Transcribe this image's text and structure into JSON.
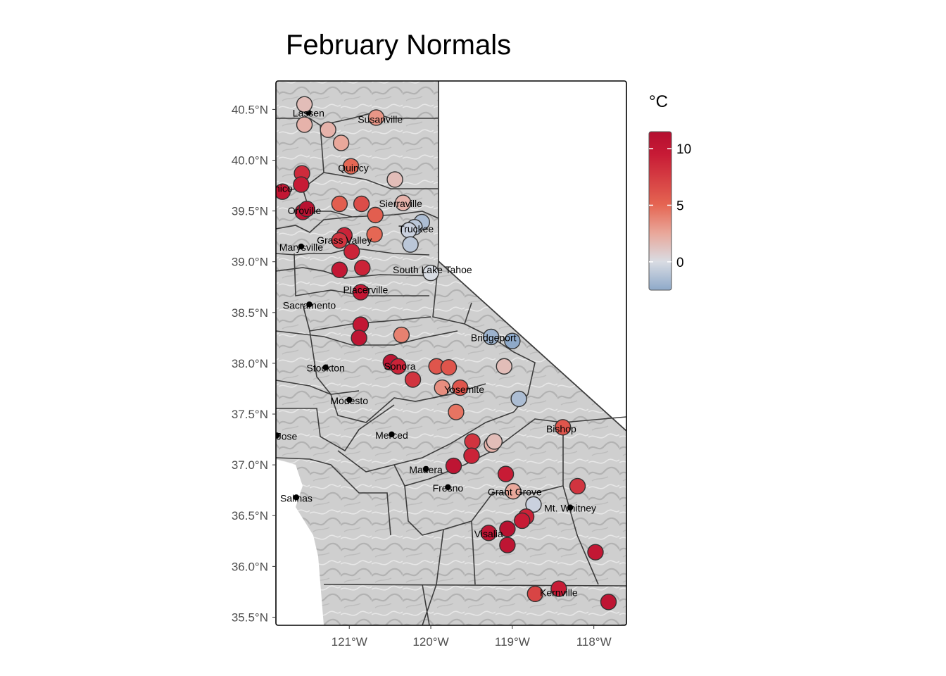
{
  "title": "February Normals",
  "legend": {
    "title": "°C",
    "breaks": [
      0,
      5,
      10
    ],
    "range": [
      -2.5,
      11.5
    ],
    "colors": [
      "#8ea9c9",
      "#d9dce3",
      "#e9a79a",
      "#e56552",
      "#c71a35",
      "#b40f30"
    ]
  },
  "axes": {
    "x_ticks": [
      {
        "value": -121,
        "label": "121°W"
      },
      {
        "value": -120,
        "label": "120°W"
      },
      {
        "value": -119,
        "label": "119°W"
      },
      {
        "value": -118,
        "label": "118°W"
      }
    ],
    "y_ticks": [
      {
        "value": 40.5,
        "label": "40.5°N"
      },
      {
        "value": 40.0,
        "label": "40.0°N"
      },
      {
        "value": 39.5,
        "label": "39.5°N"
      },
      {
        "value": 39.0,
        "label": "39.0°N"
      },
      {
        "value": 38.5,
        "label": "38.5°N"
      },
      {
        "value": 38.0,
        "label": "38.0°N"
      },
      {
        "value": 37.5,
        "label": "37.5°N"
      },
      {
        "value": 37.0,
        "label": "37.0°N"
      },
      {
        "value": 36.5,
        "label": "36.5°N"
      },
      {
        "value": 36.0,
        "label": "36.0°N"
      },
      {
        "value": 35.5,
        "label": "35.5°N"
      }
    ],
    "xlim": [
      -121.9,
      -117.6
    ],
    "ylim": [
      35.42,
      40.78
    ]
  },
  "cities": [
    {
      "name": "Lassen",
      "lon": -121.5,
      "lat": 40.47
    },
    {
      "name": "Susanville",
      "lon": -120.62,
      "lat": 40.41
    },
    {
      "name": "Quincy",
      "lon": -120.95,
      "lat": 39.93
    },
    {
      "name": "Chico",
      "lon": -121.85,
      "lat": 39.73
    },
    {
      "name": "Oroville",
      "lon": -121.55,
      "lat": 39.51
    },
    {
      "name": "Sierraville",
      "lon": -120.37,
      "lat": 39.58
    },
    {
      "name": "Truckee",
      "lon": -120.18,
      "lat": 39.33
    },
    {
      "name": "Grass Valley",
      "lon": -121.06,
      "lat": 39.22
    },
    {
      "name": "Marysville",
      "lon": -121.59,
      "lat": 39.15
    },
    {
      "name": "South Lake Tahoe",
      "lon": -119.98,
      "lat": 38.93
    },
    {
      "name": "Placerville",
      "lon": -120.8,
      "lat": 38.73
    },
    {
      "name": "Sacramento",
      "lon": -121.49,
      "lat": 38.58
    },
    {
      "name": "Bridgeport",
      "lon": -119.23,
      "lat": 38.26
    },
    {
      "name": "Sonora",
      "lon": -120.38,
      "lat": 37.98
    },
    {
      "name": "Stockton",
      "lon": -121.29,
      "lat": 37.96
    },
    {
      "name": "Yosemite",
      "lon": -119.59,
      "lat": 37.75
    },
    {
      "name": "Modesto",
      "lon": -121.0,
      "lat": 37.64
    },
    {
      "name": "Bishop",
      "lon": -118.4,
      "lat": 37.36
    },
    {
      "name": "San Jose",
      "lon": -121.89,
      "lat": 37.29
    },
    {
      "name": "Merced",
      "lon": -120.48,
      "lat": 37.3
    },
    {
      "name": "Madera",
      "lon": -120.06,
      "lat": 36.96
    },
    {
      "name": "Fresno",
      "lon": -119.79,
      "lat": 36.78
    },
    {
      "name": "Grant Grove",
      "lon": -118.97,
      "lat": 36.74
    },
    {
      "name": "Salinas",
      "lon": -121.65,
      "lat": 36.68
    },
    {
      "name": "Mt. Whitney",
      "lon": -118.29,
      "lat": 36.58
    },
    {
      "name": "Visalia",
      "lon": -119.29,
      "lat": 36.33
    },
    {
      "name": "Kernville",
      "lon": -118.43,
      "lat": 35.75
    }
  ],
  "stations": [
    {
      "lon": -121.55,
      "lat": 40.55,
      "value": 1.5
    },
    {
      "lon": -121.55,
      "lat": 40.35,
      "value": 2.0
    },
    {
      "lon": -120.67,
      "lat": 40.42,
      "value": 3.2
    },
    {
      "lon": -121.26,
      "lat": 40.3,
      "value": 2.0
    },
    {
      "lon": -121.1,
      "lat": 40.17,
      "value": 2.5
    },
    {
      "lon": -120.98,
      "lat": 39.94,
      "value": 5.0
    },
    {
      "lon": -120.44,
      "lat": 39.81,
      "value": 1.5
    },
    {
      "lon": -121.58,
      "lat": 39.87,
      "value": 8.5
    },
    {
      "lon": -121.59,
      "lat": 39.76,
      "value": 9.5
    },
    {
      "lon": -121.82,
      "lat": 39.69,
      "value": 10.0
    },
    {
      "lon": -121.57,
      "lat": 39.49,
      "value": 10.5
    },
    {
      "lon": -121.52,
      "lat": 39.52,
      "value": 11.0
    },
    {
      "lon": -121.12,
      "lat": 39.57,
      "value": 5.5
    },
    {
      "lon": -120.85,
      "lat": 39.57,
      "value": 6.5
    },
    {
      "lon": -120.34,
      "lat": 39.58,
      "value": 2.0
    },
    {
      "lon": -120.68,
      "lat": 39.46,
      "value": 5.5
    },
    {
      "lon": -120.11,
      "lat": 39.39,
      "value": -1.5
    },
    {
      "lon": -120.2,
      "lat": 39.34,
      "value": -1.0
    },
    {
      "lon": -120.27,
      "lat": 39.31,
      "value": -0.5
    },
    {
      "lon": -120.69,
      "lat": 39.27,
      "value": 5.0
    },
    {
      "lon": -121.06,
      "lat": 39.26,
      "value": 9.0
    },
    {
      "lon": -121.12,
      "lat": 39.21,
      "value": 8.0
    },
    {
      "lon": -120.97,
      "lat": 39.1,
      "value": 9.0
    },
    {
      "lon": -120.25,
      "lat": 39.17,
      "value": -1.0
    },
    {
      "lon": -121.12,
      "lat": 38.92,
      "value": 10.0
    },
    {
      "lon": -120.84,
      "lat": 38.94,
      "value": 9.0
    },
    {
      "lon": -120.0,
      "lat": 38.89,
      "value": 0.0
    },
    {
      "lon": -120.86,
      "lat": 38.7,
      "value": 10.0
    },
    {
      "lon": -120.86,
      "lat": 38.38,
      "value": 10.0
    },
    {
      "lon": -120.88,
      "lat": 38.25,
      "value": 10.5
    },
    {
      "lon": -120.36,
      "lat": 38.28,
      "value": 4.0
    },
    {
      "lon": -119.26,
      "lat": 38.26,
      "value": -2.0
    },
    {
      "lon": -119.0,
      "lat": 38.22,
      "value": -2.5
    },
    {
      "lon": -120.49,
      "lat": 38.01,
      "value": 10.5
    },
    {
      "lon": -120.4,
      "lat": 37.97,
      "value": 9.0
    },
    {
      "lon": -119.93,
      "lat": 37.97,
      "value": 6.0
    },
    {
      "lon": -119.78,
      "lat": 37.96,
      "value": 6.0
    },
    {
      "lon": -119.1,
      "lat": 37.97,
      "value": 1.5
    },
    {
      "lon": -120.22,
      "lat": 37.84,
      "value": 8.0
    },
    {
      "lon": -119.86,
      "lat": 37.76,
      "value": 3.5
    },
    {
      "lon": -119.64,
      "lat": 37.76,
      "value": 6.0
    },
    {
      "lon": -118.92,
      "lat": 37.65,
      "value": -1.5
    },
    {
      "lon": -119.69,
      "lat": 37.52,
      "value": 4.5
    },
    {
      "lon": -118.38,
      "lat": 37.37,
      "value": 6.0
    },
    {
      "lon": -119.49,
      "lat": 37.23,
      "value": 8.0
    },
    {
      "lon": -119.25,
      "lat": 37.2,
      "value": 2.0
    },
    {
      "lon": -119.22,
      "lat": 37.23,
      "value": 1.5
    },
    {
      "lon": -119.5,
      "lat": 37.09,
      "value": 9.0
    },
    {
      "lon": -119.72,
      "lat": 36.99,
      "value": 10.5
    },
    {
      "lon": -119.08,
      "lat": 36.91,
      "value": 9.5
    },
    {
      "lon": -118.2,
      "lat": 36.79,
      "value": 8.0
    },
    {
      "lon": -118.99,
      "lat": 36.74,
      "value": 2.5
    },
    {
      "lon": -118.74,
      "lat": 36.61,
      "value": -0.5
    },
    {
      "lon": -118.83,
      "lat": 36.49,
      "value": 9.0
    },
    {
      "lon": -118.88,
      "lat": 36.45,
      "value": 9.5
    },
    {
      "lon": -119.06,
      "lat": 36.37,
      "value": 11.0
    },
    {
      "lon": -119.29,
      "lat": 36.33,
      "value": 10.5
    },
    {
      "lon": -119.06,
      "lat": 36.21,
      "value": 10.5
    },
    {
      "lon": -117.98,
      "lat": 36.14,
      "value": 10.0
    },
    {
      "lon": -118.43,
      "lat": 35.78,
      "value": 9.5
    },
    {
      "lon": -118.72,
      "lat": 35.73,
      "value": 7.0
    },
    {
      "lon": -117.82,
      "lat": 35.65,
      "value": 10.5
    }
  ]
}
